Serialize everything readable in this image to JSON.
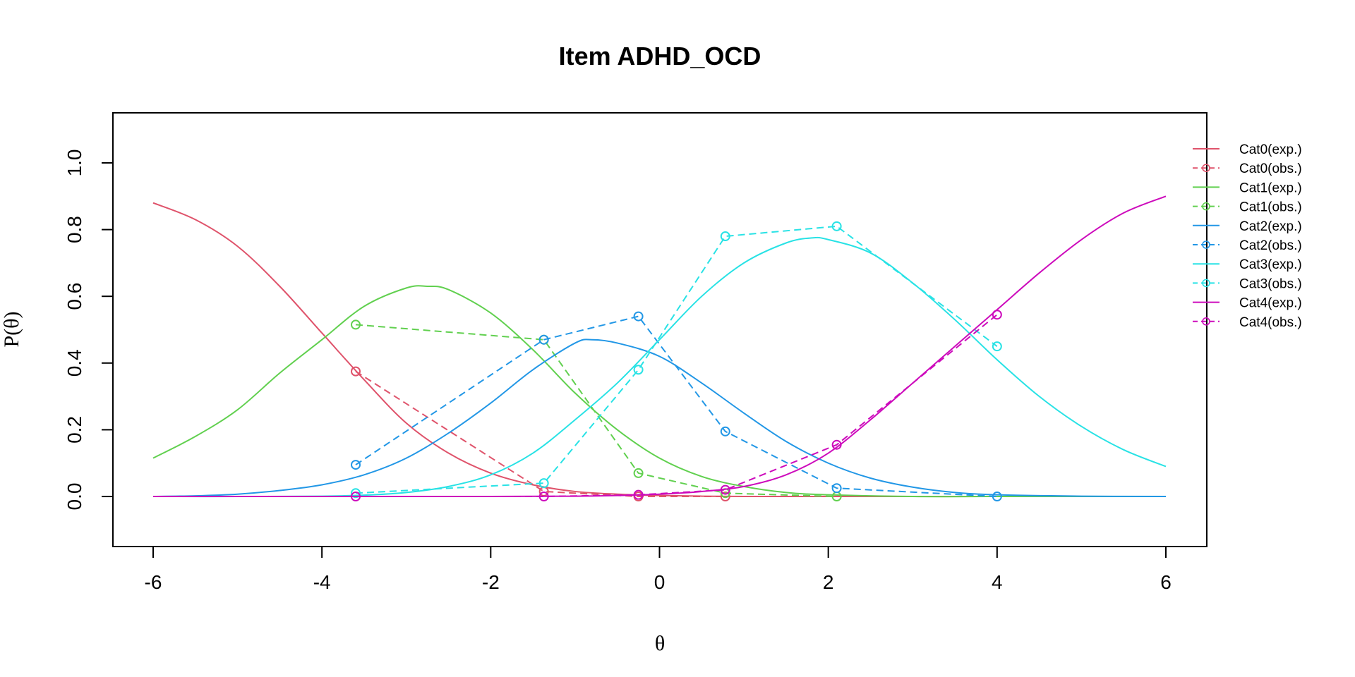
{
  "chart_data": {
    "type": "line",
    "title": "Item ADHD_OCD",
    "xlabel": "θ",
    "ylabel": "P(θ)",
    "xlim": [
      -6,
      6
    ],
    "ylim": [
      -0.15,
      1.15
    ],
    "xticks": [
      -6,
      -4,
      -2,
      0,
      2,
      4,
      6
    ],
    "yticks": [
      0.0,
      0.2,
      0.4,
      0.6,
      0.8,
      1.0
    ],
    "xtick_labels": [
      "-6",
      "-4",
      "-2",
      "0",
      "2",
      "4",
      "6"
    ],
    "ytick_labels": [
      "0.0",
      "0.2",
      "0.4",
      "0.6",
      "0.8",
      "1.0"
    ],
    "grid": false,
    "legend_position": "right",
    "observed_x": [
      -3.6,
      -1.37,
      -0.25,
      0.78,
      2.1,
      4.0
    ],
    "series": [
      {
        "name": "Cat0(exp.)",
        "color": "#DF536B",
        "style": "solid",
        "x": [
          -6,
          -5.5,
          -5,
          -4.5,
          -4,
          -3.5,
          -3,
          -2.5,
          -2,
          -1.5,
          -1,
          -0.5,
          0,
          0.5,
          1,
          2,
          3,
          4,
          5,
          6
        ],
        "values": [
          0.88,
          0.83,
          0.75,
          0.63,
          0.49,
          0.35,
          0.22,
          0.13,
          0.07,
          0.035,
          0.015,
          0.007,
          0.003,
          0.001,
          0,
          0,
          0,
          0,
          0,
          0
        ]
      },
      {
        "name": "Cat0(obs.)",
        "color": "#DF536B",
        "style": "dashed",
        "marker": "circle",
        "x": [
          -3.6,
          -1.37,
          -0.25,
          0.78
        ],
        "values": [
          0.375,
          0.015,
          0.0,
          0.0
        ]
      },
      {
        "name": "Cat1(exp.)",
        "color": "#61D04F",
        "style": "solid",
        "x": [
          -6,
          -5.5,
          -5,
          -4.5,
          -4,
          -3.5,
          -3,
          -2.75,
          -2.5,
          -2,
          -1.5,
          -1,
          -0.5,
          0,
          0.5,
          1,
          1.5,
          2,
          3,
          4,
          5,
          6
        ],
        "values": [
          0.115,
          0.18,
          0.26,
          0.37,
          0.47,
          0.57,
          0.625,
          0.63,
          0.62,
          0.55,
          0.44,
          0.31,
          0.2,
          0.115,
          0.06,
          0.03,
          0.012,
          0.005,
          0,
          0,
          0,
          0
        ]
      },
      {
        "name": "Cat1(obs.)",
        "color": "#61D04F",
        "style": "dashed",
        "marker": "circle",
        "x": [
          -3.6,
          -1.37,
          -0.25,
          0.78,
          2.1
        ],
        "values": [
          0.515,
          0.47,
          0.07,
          0.01,
          0.0
        ]
      },
      {
        "name": "Cat2(exp.)",
        "color": "#2297E6",
        "style": "solid",
        "x": [
          -6,
          -5.5,
          -5,
          -4.5,
          -4,
          -3.5,
          -3,
          -2.5,
          -2,
          -1.5,
          -1,
          -0.8,
          -0.5,
          0,
          0.5,
          1,
          1.5,
          2,
          2.5,
          3,
          3.5,
          4,
          5,
          6
        ],
        "values": [
          0,
          0.002,
          0.007,
          0.018,
          0.035,
          0.065,
          0.115,
          0.19,
          0.28,
          0.38,
          0.46,
          0.47,
          0.46,
          0.42,
          0.34,
          0.25,
          0.165,
          0.1,
          0.055,
          0.028,
          0.012,
          0.005,
          0.001,
          0
        ]
      },
      {
        "name": "Cat2(obs.)",
        "color": "#2297E6",
        "style": "dashed",
        "marker": "circle",
        "x": [
          -3.6,
          -1.37,
          -0.25,
          0.78,
          2.1,
          4.0
        ],
        "values": [
          0.095,
          0.47,
          0.54,
          0.195,
          0.025,
          0.0
        ]
      },
      {
        "name": "Cat3(exp.)",
        "color": "#28E2E5",
        "style": "solid",
        "x": [
          -6,
          -5,
          -4,
          -3.5,
          -3,
          -2.5,
          -2,
          -1.5,
          -1,
          -0.5,
          0,
          0.5,
          1,
          1.5,
          1.8,
          2,
          2.5,
          3,
          3.5,
          4,
          4.5,
          5,
          5.5,
          6
        ],
        "values": [
          0,
          0,
          0.001,
          0.004,
          0.012,
          0.03,
          0.065,
          0.13,
          0.23,
          0.34,
          0.47,
          0.6,
          0.7,
          0.76,
          0.775,
          0.77,
          0.73,
          0.64,
          0.53,
          0.41,
          0.3,
          0.21,
          0.14,
          0.09
        ]
      },
      {
        "name": "Cat3(obs.)",
        "color": "#28E2E5",
        "style": "dashed",
        "marker": "circle",
        "x": [
          -3.6,
          -1.37,
          -0.25,
          0.78,
          2.1,
          4.0
        ],
        "values": [
          0.01,
          0.04,
          0.38,
          0.78,
          0.81,
          0.45
        ]
      },
      {
        "name": "Cat4(exp.)",
        "color": "#CD0BBC",
        "style": "solid",
        "x": [
          -6,
          -4,
          -2,
          -1,
          -0.5,
          0,
          0.5,
          1,
          1.5,
          2,
          2.5,
          3,
          3.5,
          4,
          4.5,
          5,
          5.5,
          6
        ],
        "values": [
          0,
          0,
          0,
          0.001,
          0.003,
          0.007,
          0.015,
          0.03,
          0.065,
          0.13,
          0.23,
          0.34,
          0.45,
          0.56,
          0.67,
          0.77,
          0.85,
          0.9
        ]
      },
      {
        "name": "Cat4(obs.)",
        "color": "#CD0BBC",
        "style": "dashed",
        "marker": "circle",
        "x": [
          -3.6,
          -1.37,
          -0.25,
          0.78,
          2.1,
          4.0
        ],
        "values": [
          0.0,
          0.0,
          0.005,
          0.02,
          0.155,
          0.545
        ]
      }
    ]
  }
}
